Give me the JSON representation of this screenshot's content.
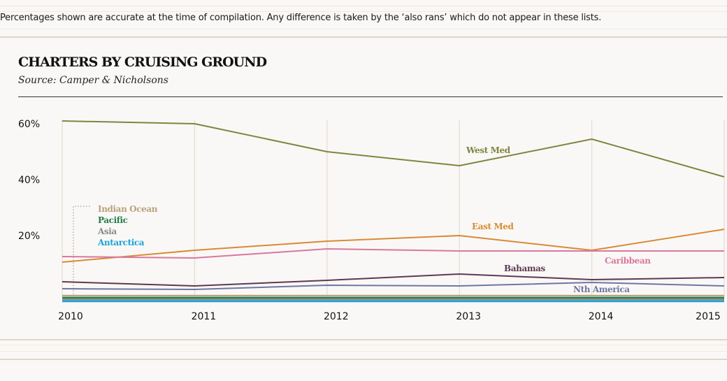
{
  "note": "Percentages shown are accurate at the time of compilation. Any difference is taken by the ‘also rans’ which do not appear in these lists.",
  "chart_data": {
    "type": "line",
    "title": "CHARTERS BY CRUISING GROUND",
    "subtitle": "Source: Camper & Nicholsons",
    "xlabel": "",
    "ylabel": "",
    "x": [
      "2010",
      "2011",
      "2012",
      "2013",
      "2014",
      "2015"
    ],
    "y_ticks": [
      {
        "value": 60,
        "label": "60%"
      },
      {
        "value": 40,
        "label": "40%"
      },
      {
        "value": 20,
        "label": "20%"
      }
    ],
    "ylim": [
      0,
      62
    ],
    "grid": "vertical",
    "series": [
      {
        "name": "West Med",
        "label": "West Med",
        "color": "#7f8640",
        "values": [
          61,
          60,
          50,
          45,
          54.5,
          41
        ]
      },
      {
        "name": "East Med",
        "label": "East Med",
        "color": "#d98a35",
        "values": [
          10.5,
          14.75,
          18,
          20,
          14.75,
          22.25
        ]
      },
      {
        "name": "Caribbean",
        "label": "Caribbean",
        "color": "#d9789f",
        "values": [
          12.5,
          12,
          15.25,
          14.5,
          14.5,
          14.5
        ]
      },
      {
        "name": "Bahamas",
        "label": "Bahamas",
        "color": "#5e3a52",
        "values": [
          3.5,
          2,
          4,
          6.25,
          4.25,
          5
        ]
      },
      {
        "name": "Nth America",
        "label": "Nth America",
        "color": "#6f77a4",
        "values": [
          1,
          0.75,
          2.25,
          2,
          3.25,
          2
        ]
      },
      {
        "name": "Indian Ocean",
        "label": "Indian Ocean",
        "color": "#b8a27e",
        "values": [
          0,
          0,
          0,
          0,
          0,
          0
        ]
      },
      {
        "name": "Pacific",
        "label": "Pacific",
        "color": "#1f7d4a",
        "values": [
          0,
          0,
          0,
          0,
          0,
          0
        ]
      },
      {
        "name": "Asia",
        "label": "Asia",
        "color": "#8a8a8a",
        "values": [
          0,
          0,
          0,
          0,
          0,
          0
        ]
      },
      {
        "name": "Antarctica",
        "label": "Antarctica",
        "color": "#1aa3dc",
        "values": [
          0,
          0,
          0,
          0,
          0,
          0
        ]
      }
    ],
    "legend": {
      "placement": "bottom-left inside plot",
      "entries": [
        "Indian Ocean",
        "Pacific",
        "Asia",
        "Antarctica"
      ]
    }
  }
}
